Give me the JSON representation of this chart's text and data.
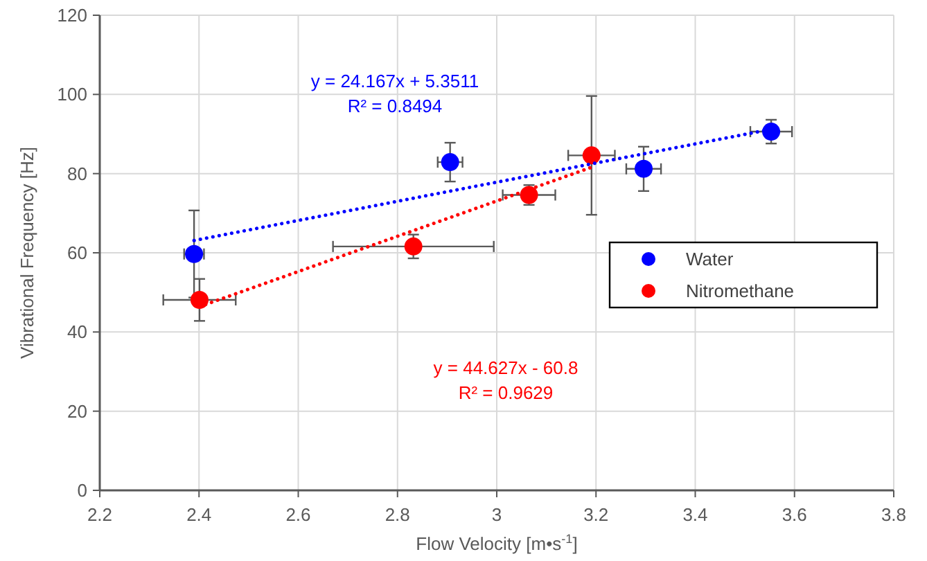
{
  "chart_data": {
    "type": "scatter",
    "xlabel": "Flow Velocity [m•s$^{-1}$]",
    "ylabel": "Vibrational Frequency [Hz]",
    "xlim": [
      2.2,
      3.8
    ],
    "xticks": [
      {
        "value": 2.2,
        "label": "2.2"
      },
      {
        "value": 2.4,
        "label": "2.4"
      },
      {
        "value": 2.6,
        "label": "2.6"
      },
      {
        "value": 2.8,
        "label": "2.8"
      },
      {
        "value": 3,
        "label": "3"
      },
      {
        "value": 3.2,
        "label": "3.2"
      },
      {
        "value": 3.4,
        "label": "3.4"
      },
      {
        "value": 3.6,
        "label": "3.6"
      },
      {
        "value": 3.8,
        "label": "3.8"
      }
    ],
    "ylim": [
      0,
      120
    ],
    "yticks": [
      0,
      20,
      40,
      60,
      80,
      100,
      120
    ],
    "grid": true,
    "legend": "right",
    "marker": "circle",
    "series": [
      {
        "name": "Water",
        "color": "#0000ff",
        "x": [
          2.39,
          2.906,
          3.296,
          3.553
        ],
        "values": [
          59.7,
          82.9,
          81.2,
          90.6
        ],
        "errors": [
          11,
          4.9,
          5.6,
          3
        ],
        "xerrors": [
          0.02,
          0.025,
          0.035,
          0.042
        ]
      },
      {
        "name": "Nitromethane",
        "color": "#ff0000",
        "x": [
          2.401,
          2.832,
          3.065,
          3.191
        ],
        "values": [
          48.1,
          61.6,
          74.6,
          84.6
        ],
        "errors": [
          5.3,
          3,
          2.5,
          15
        ],
        "xerrors": [
          0.073,
          0.162,
          0.053,
          0.047
        ]
      },
      {
        "type": "line",
        "color": "#0000ff",
        "line_style": "dotted",
        "marker": "none",
        "x": [
          2.39,
          3.553
        ],
        "values": [
          63.1,
          91.2
        ]
      },
      {
        "type": "line",
        "color": "#ff0000",
        "line_style": "dotted",
        "marker": "none",
        "x": [
          2.401,
          3.191
        ],
        "values": [
          46.4,
          81.6
        ]
      }
    ],
    "annotations": [
      "y = 24.167x + 5.3511",
      "R² = 0.8494",
      "y = 44.627x - 60.8",
      "R² = 0.9629"
    ]
  }
}
